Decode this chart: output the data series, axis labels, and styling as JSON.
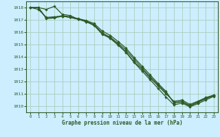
{
  "background_color": "#cceeff",
  "grid_color": "#aaccbb",
  "line_color": "#2d5a27",
  "marker_color": "#2d5a27",
  "title": "Graphe pression niveau de la mer (hPa)",
  "label_color": "#2d5a27",
  "ylim": [
    1009.5,
    1018.5
  ],
  "xlim": [
    -0.5,
    23.5
  ],
  "yticks": [
    1010,
    1011,
    1012,
    1013,
    1014,
    1015,
    1016,
    1017,
    1018
  ],
  "xticks": [
    0,
    1,
    2,
    3,
    4,
    5,
    6,
    7,
    8,
    9,
    10,
    11,
    12,
    13,
    14,
    15,
    16,
    17,
    18,
    19,
    20,
    21,
    22,
    23
  ],
  "series": [
    [
      1018.0,
      1018.0,
      1017.85,
      1018.1,
      1017.45,
      1017.35,
      1017.05,
      1016.85,
      1016.55,
      1015.85,
      1015.55,
      1015.0,
      1014.4,
      1013.6,
      1013.0,
      1012.3,
      1011.65,
      1011.0,
      1010.4,
      1010.5,
      1010.15,
      1010.4,
      1010.7,
      1010.9
    ],
    [
      1018.0,
      1017.85,
      1017.2,
      1017.25,
      1017.3,
      1017.2,
      1017.05,
      1016.9,
      1016.6,
      1015.95,
      1015.6,
      1015.1,
      1014.55,
      1013.8,
      1013.1,
      1012.4,
      1011.75,
      1011.1,
      1010.3,
      1010.4,
      1010.05,
      1010.35,
      1010.65,
      1010.9
    ],
    [
      1018.0,
      1018.0,
      1017.15,
      1017.2,
      1017.35,
      1017.25,
      1017.1,
      1016.95,
      1016.7,
      1016.1,
      1015.75,
      1015.25,
      1014.7,
      1013.95,
      1013.25,
      1012.55,
      1011.85,
      1011.2,
      1010.25,
      1010.35,
      1010.0,
      1010.3,
      1010.6,
      1010.85
    ],
    [
      1018.0,
      1018.0,
      1017.1,
      1017.15,
      1017.3,
      1017.2,
      1017.05,
      1016.85,
      1016.55,
      1015.85,
      1015.5,
      1014.95,
      1014.35,
      1013.55,
      1012.85,
      1012.15,
      1011.45,
      1010.75,
      1010.1,
      1010.25,
      1009.95,
      1010.2,
      1010.5,
      1010.8
    ]
  ]
}
